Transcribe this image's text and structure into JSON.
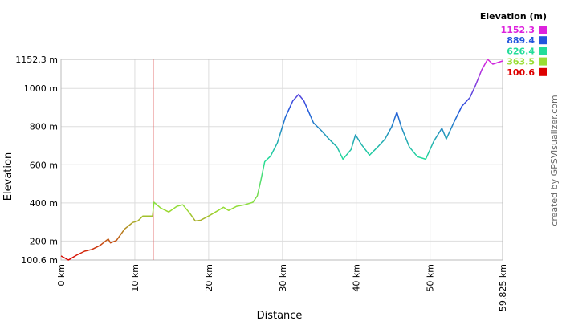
{
  "chart_data": {
    "type": "line",
    "xlabel": "Distance",
    "ylabel": "Elevation",
    "credit": "created by GPSVisualizer.com",
    "legend_title": "Elevation (m)",
    "color_scale": [
      {
        "value": 1152.3,
        "color": "#dd22dd"
      },
      {
        "value": 889.4,
        "color": "#2255dd"
      },
      {
        "value": 626.4,
        "color": "#22dd99"
      },
      {
        "value": 363.5,
        "color": "#99dd33"
      },
      {
        "value": 100.6,
        "color": "#dd0000"
      }
    ],
    "grid": true,
    "marker_x": 12.5,
    "marker_color": "#e06060",
    "xlim": [
      0,
      59.825
    ],
    "xticks": [
      {
        "value": 0,
        "label": "0 km"
      },
      {
        "value": 10,
        "label": "10 km"
      },
      {
        "value": 20,
        "label": "20 km"
      },
      {
        "value": 30,
        "label": "30 km"
      },
      {
        "value": 40,
        "label": "40 km"
      },
      {
        "value": 50,
        "label": "50 km"
      },
      {
        "value": 59.825,
        "label": "59.825 km"
      }
    ],
    "ylim": [
      100.6,
      1152.3
    ],
    "yticks": [
      {
        "value": 100.6,
        "label": "100.6 m"
      },
      {
        "value": 200,
        "label": "200 m"
      },
      {
        "value": 400,
        "label": "400 m"
      },
      {
        "value": 600,
        "label": "600 m"
      },
      {
        "value": 800,
        "label": "800 m"
      },
      {
        "value": 1000,
        "label": "1000 m"
      },
      {
        "value": 1152.3,
        "label": "1152.3 m"
      }
    ],
    "x": [
      0,
      1,
      2.1,
      3.2,
      4.2,
      5.3,
      6.4,
      6.7,
      7.5,
      8.6,
      9.7,
      10.4,
      11.1,
      12.4,
      12.6,
      13.5,
      14.6,
      15.7,
      16.5,
      17.4,
      18.2,
      18.9,
      20,
      21.1,
      22,
      22.7,
      23.8,
      24.9,
      26,
      26.6,
      27.1,
      27.6,
      28.4,
      29.3,
      30.4,
      31.4,
      32.2,
      32.9,
      34.2,
      35.3,
      36.3,
      37.4,
      38.2,
      39.3,
      39.9,
      40.7,
      41.8,
      42.9,
      43.9,
      44.8,
      45.5,
      46.1,
      47.2,
      48.3,
      49.4,
      50.5,
      51.6,
      52.2,
      53.2,
      54.3,
      55.4,
      56.2,
      57,
      57.8,
      58.5,
      59.2,
      59.825
    ],
    "values": [
      122,
      100.6,
      126,
      147,
      156,
      177,
      211,
      190,
      203,
      262,
      297,
      305,
      331,
      331,
      403,
      373,
      352,
      382,
      390,
      348,
      305,
      309,
      331,
      356,
      377,
      360,
      382,
      390,
      403,
      437,
      522,
      616,
      646,
      714,
      850,
      935,
      969,
      935,
      820,
      778,
      735,
      693,
      629,
      680,
      757,
      706,
      650,
      693,
      735,
      799,
      876,
      799,
      693,
      642,
      629,
      723,
      791,
      735,
      820,
      906,
      952,
      1020,
      1097,
      1152.3,
      1127,
      1136,
      1144
    ]
  }
}
